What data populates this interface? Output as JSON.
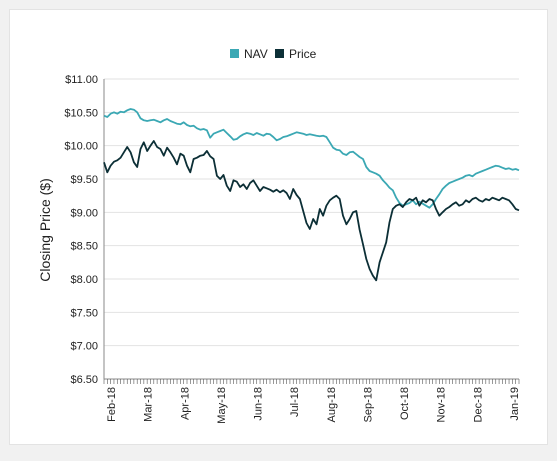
{
  "chart_data": {
    "type": "line",
    "title": "",
    "xlabel": "",
    "ylabel": "Closing Price ($)",
    "ylim": [
      6.5,
      11.0
    ],
    "y_ticks": [
      "$6.50",
      "$7.00",
      "$7.50",
      "$8.00",
      "$8.50",
      "$9.00",
      "$9.50",
      "$10.00",
      "$10.50",
      "$11.00"
    ],
    "y_tick_values": [
      6.5,
      7.0,
      7.5,
      8.0,
      8.5,
      9.0,
      9.5,
      10.0,
      10.5,
      11.0
    ],
    "x_ticks": [
      "Feb-18",
      "Mar-18",
      "Apr-18",
      "May-18",
      "Jun-18",
      "Jul-18",
      "Aug-18",
      "Sep-18",
      "Oct-18",
      "Nov-18",
      "Dec-18",
      "Jan-19"
    ],
    "grid": "horizontal",
    "legend_position": "top-center",
    "colors": {
      "NAV": "#3ba8b4",
      "Price": "#0c2f36"
    },
    "series": [
      {
        "name": "NAV",
        "x": [
          0,
          2,
          4,
          6,
          8,
          10,
          12,
          14,
          16,
          18,
          20,
          22,
          24,
          26,
          28,
          30,
          32,
          34,
          36,
          38,
          40,
          42,
          44,
          46,
          48,
          50,
          52,
          54,
          56,
          58,
          60,
          62,
          64,
          66,
          68,
          70,
          72,
          74,
          76,
          78,
          80,
          82,
          84,
          86,
          88,
          90,
          92,
          94,
          96,
          98,
          100,
          102,
          104,
          106,
          108,
          110,
          112,
          114,
          116,
          118,
          120,
          122,
          124,
          126,
          128,
          130,
          132,
          134,
          136,
          138,
          140,
          142,
          144,
          146,
          148,
          150,
          152,
          154,
          156,
          158,
          160,
          162,
          164,
          166,
          168,
          170,
          172,
          174,
          176,
          178,
          180,
          182,
          184,
          186,
          188,
          190,
          192,
          194,
          196,
          198,
          200,
          202,
          204,
          206,
          208,
          210,
          212,
          214,
          216,
          218,
          220,
          222,
          224,
          226,
          228,
          230,
          232,
          234,
          236,
          238,
          240,
          242,
          244,
          246,
          248,
          250
        ],
        "values": [
          10.45,
          10.43,
          10.48,
          10.5,
          10.48,
          10.51,
          10.5,
          10.53,
          10.55,
          10.54,
          10.5,
          10.41,
          10.38,
          10.37,
          10.38,
          10.39,
          10.37,
          10.35,
          10.38,
          10.4,
          10.37,
          10.35,
          10.33,
          10.32,
          10.35,
          10.31,
          10.29,
          10.3,
          10.26,
          10.24,
          10.25,
          10.23,
          10.12,
          10.18,
          10.2,
          10.22,
          10.24,
          10.19,
          10.14,
          10.09,
          10.1,
          10.14,
          10.17,
          10.19,
          10.18,
          10.16,
          10.19,
          10.17,
          10.15,
          10.18,
          10.17,
          10.13,
          10.08,
          10.1,
          10.13,
          10.14,
          10.16,
          10.18,
          10.2,
          10.19,
          10.18,
          10.16,
          10.17,
          10.16,
          10.15,
          10.14,
          10.15,
          10.13,
          10.05,
          9.97,
          9.94,
          9.93,
          9.88,
          9.86,
          9.9,
          9.91,
          9.87,
          9.83,
          9.8,
          9.68,
          9.62,
          9.6,
          9.58,
          9.55,
          9.48,
          9.43,
          9.37,
          9.33,
          9.22,
          9.14,
          9.1,
          9.12,
          9.14,
          9.18,
          9.12,
          9.16,
          9.13,
          9.1,
          9.07,
          9.12,
          9.2,
          9.27,
          9.35,
          9.4,
          9.44,
          9.46,
          9.48,
          9.5,
          9.52,
          9.55,
          9.56,
          9.54,
          9.58,
          9.6,
          9.62,
          9.64,
          9.66,
          9.68,
          9.7,
          9.69,
          9.67,
          9.65,
          9.66,
          9.64,
          9.65,
          9.63
        ]
      },
      {
        "name": "Price",
        "x": [
          0,
          2,
          4,
          6,
          8,
          10,
          12,
          14,
          16,
          18,
          20,
          22,
          24,
          26,
          28,
          30,
          32,
          34,
          36,
          38,
          40,
          42,
          44,
          46,
          48,
          50,
          52,
          54,
          56,
          58,
          60,
          62,
          64,
          66,
          68,
          70,
          72,
          74,
          76,
          78,
          80,
          82,
          84,
          86,
          88,
          90,
          92,
          94,
          96,
          98,
          100,
          102,
          104,
          106,
          108,
          110,
          112,
          114,
          116,
          118,
          120,
          122,
          124,
          126,
          128,
          130,
          132,
          134,
          136,
          138,
          140,
          142,
          144,
          146,
          148,
          150,
          152,
          154,
          156,
          158,
          160,
          162,
          164,
          166,
          168,
          170,
          172,
          174,
          176,
          178,
          180,
          182,
          184,
          186,
          188,
          190,
          192,
          194,
          196,
          198,
          200,
          202,
          204,
          206,
          208,
          210,
          212,
          214,
          216,
          218,
          220,
          222,
          224,
          226,
          228,
          230,
          232,
          234,
          236,
          238,
          240,
          242,
          244,
          246,
          248,
          250
        ],
        "values": [
          9.75,
          9.6,
          9.7,
          9.76,
          9.78,
          9.82,
          9.9,
          9.98,
          9.9,
          9.75,
          9.68,
          9.95,
          10.05,
          9.92,
          10.0,
          10.07,
          9.98,
          9.95,
          9.85,
          9.97,
          9.9,
          9.82,
          9.72,
          9.88,
          9.85,
          9.7,
          9.6,
          9.8,
          9.82,
          9.85,
          9.86,
          9.92,
          9.84,
          9.8,
          9.55,
          9.5,
          9.56,
          9.4,
          9.32,
          9.48,
          9.46,
          9.38,
          9.42,
          9.35,
          9.44,
          9.48,
          9.4,
          9.32,
          9.38,
          9.36,
          9.34,
          9.31,
          9.34,
          9.3,
          9.33,
          9.29,
          9.2,
          9.35,
          9.26,
          9.2,
          9.02,
          8.84,
          8.75,
          8.9,
          8.82,
          9.05,
          8.95,
          9.1,
          9.18,
          9.22,
          9.25,
          9.2,
          8.95,
          8.82,
          8.9,
          9.0,
          9.02,
          8.74,
          8.52,
          8.3,
          8.15,
          8.05,
          7.98,
          8.25,
          8.4,
          8.55,
          8.85,
          9.05,
          9.1,
          9.12,
          9.08,
          9.15,
          9.2,
          9.18,
          9.22,
          9.1,
          9.18,
          9.15,
          9.2,
          9.18,
          9.05,
          8.95,
          9.0,
          9.05,
          9.08,
          9.12,
          9.15,
          9.1,
          9.12,
          9.18,
          9.15,
          9.2,
          9.22,
          9.18,
          9.16,
          9.2,
          9.18,
          9.22,
          9.2,
          9.18,
          9.22,
          9.2,
          9.18,
          9.12,
          9.05,
          9.03
        ]
      }
    ]
  }
}
